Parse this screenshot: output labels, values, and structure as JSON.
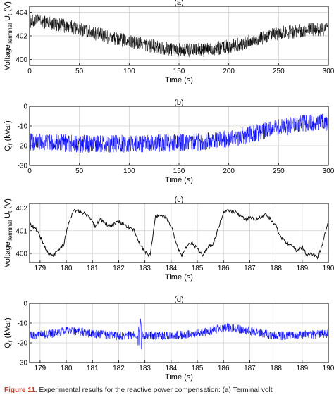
{
  "chart_data": [
    {
      "type": "line",
      "title": "(a)",
      "xlabel": "Time (s)",
      "ylabel": "Voltage",
      "ylabel_sub": "Terminal",
      "ylabel_rest": " U",
      "ylabel_sub2": "t",
      "ylabel_unit": " (V)",
      "xlim": [
        0,
        300
      ],
      "ylim": [
        399.5,
        404.5
      ],
      "xticks": [
        "0",
        "50",
        "100",
        "150",
        "200",
        "250",
        "300"
      ],
      "yticks": [
        "400",
        "402",
        "404"
      ],
      "grid": true,
      "color": "#000000",
      "trend_x": [
        0,
        10,
        25,
        50,
        75,
        100,
        125,
        150,
        175,
        200,
        225,
        250,
        275,
        300
      ],
      "trend_y": [
        403.2,
        403.3,
        403.0,
        402.6,
        402.0,
        401.5,
        401.1,
        400.8,
        400.8,
        401.1,
        401.6,
        402.2,
        402.5,
        402.6
      ],
      "amplitude": 0.6
    },
    {
      "type": "line",
      "title": "(b)",
      "xlabel": "Time (s)",
      "ylabel": "Q",
      "ylabel_sub": "r",
      "ylabel_unit": " (kVar)",
      "xlim": [
        0,
        300
      ],
      "ylim": [
        -30,
        0
      ],
      "xticks": [
        "0",
        "50",
        "100",
        "150",
        "200",
        "250",
        "300"
      ],
      "yticks": [
        "-30",
        "-20",
        "-10",
        "0"
      ],
      "grid": true,
      "color": "#0000ff",
      "trend_x": [
        0,
        25,
        50,
        75,
        100,
        125,
        150,
        175,
        200,
        225,
        250,
        275,
        300
      ],
      "trend_y": [
        -18,
        -18.5,
        -19,
        -19,
        -19,
        -18.8,
        -18.5,
        -18,
        -16.5,
        -14,
        -11,
        -9,
        -8
      ],
      "amplitude": 4.5
    },
    {
      "type": "line",
      "title": "(c)",
      "xlabel": "Time (s)",
      "ylabel": "Voltage",
      "ylabel_sub": "Terminal",
      "ylabel_rest": " U",
      "ylabel_sub2": "t",
      "ylabel_unit": " (V)",
      "xlim": [
        178.6,
        190
      ],
      "ylim": [
        399.6,
        402.2
      ],
      "xticks": [
        "179",
        "180",
        "181",
        "182",
        "183",
        "184",
        "185",
        "186",
        "187",
        "188",
        "189",
        "190"
      ],
      "yticks": [
        "400",
        "401",
        "402"
      ],
      "grid": true,
      "color": "#000000",
      "x": [
        178.6,
        178.9,
        179.1,
        179.3,
        179.5,
        179.7,
        179.9,
        180.1,
        180.3,
        180.6,
        180.9,
        181.1,
        181.3,
        181.5,
        181.7,
        182.0,
        182.3,
        182.6,
        182.8,
        183.0,
        183.2,
        183.4,
        183.6,
        183.8,
        184.0,
        184.2,
        184.4,
        184.6,
        184.8,
        185.0,
        185.2,
        185.4,
        185.6,
        185.8,
        186.0,
        186.2,
        186.5,
        186.8,
        187.0,
        187.2,
        187.4,
        187.6,
        187.8,
        188.0,
        188.2,
        188.4,
        188.6,
        188.8,
        189.0,
        189.2,
        189.4,
        189.6,
        189.8,
        190.0
      ],
      "y": [
        401.3,
        401.0,
        400.5,
        400.0,
        399.9,
        400.2,
        400.4,
        401.4,
        401.9,
        401.8,
        401.6,
        401.2,
        401.5,
        401.3,
        401.2,
        401.4,
        401.2,
        401.0,
        400.4,
        400.1,
        399.9,
        401.6,
        401.7,
        401.6,
        401.2,
        400.4,
        399.9,
        400.3,
        400.5,
        400.2,
        399.9,
        400.3,
        400.4,
        401.1,
        401.8,
        401.9,
        401.8,
        401.5,
        401.6,
        401.5,
        401.6,
        401.7,
        401.5,
        401.2,
        400.7,
        400.5,
        400.3,
        400.1,
        400.3,
        399.9,
        400.0,
        399.8,
        400.5,
        401.5
      ],
      "noise": 0.08
    },
    {
      "type": "line",
      "title": "(d)",
      "xlabel": "Time (s)",
      "ylabel": "Q",
      "ylabel_sub": "r",
      "ylabel_unit": " (kVar)",
      "xlim": [
        178.6,
        190
      ],
      "ylim": [
        -30,
        0
      ],
      "xticks": [
        "179",
        "180",
        "181",
        "182",
        "183",
        "184",
        "185",
        "186",
        "187",
        "188",
        "189",
        "190"
      ],
      "yticks": [
        "-30",
        "-20",
        "-10",
        "0"
      ],
      "grid": true,
      "color": "#0000ff",
      "trend_x": [
        178.6,
        179.4,
        180.2,
        181.0,
        182.0,
        182.8,
        183.6,
        184.5,
        185.3,
        186.1,
        187.0,
        188.0,
        189.0,
        190.0
      ],
      "trend_y": [
        -16.5,
        -15.5,
        -13.5,
        -15.5,
        -16.5,
        -16.0,
        -16.5,
        -16.0,
        -14.5,
        -12.0,
        -14.0,
        -16.5,
        -16.0,
        -15.5
      ],
      "amplitude": 2.2,
      "spike_x": 182.8,
      "spike_range": [
        -25,
        -7
      ]
    }
  ],
  "caption": {
    "figure_label": "Figure 11.",
    "text": " Experimental results for the reactive power compensation: (a) Terminal volt"
  }
}
